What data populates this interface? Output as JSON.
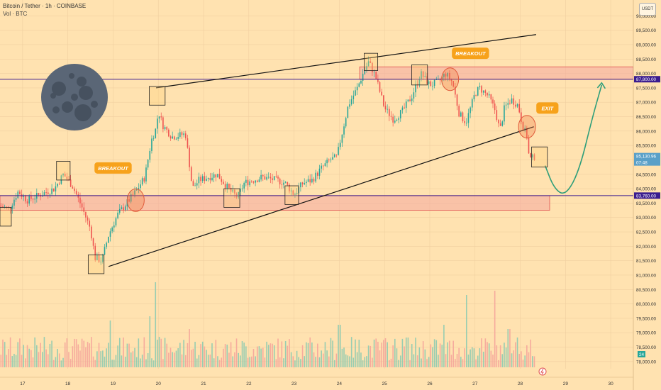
{
  "header": {
    "symbol": "Bitcoin / Tether · 1h · COINBASE",
    "volume_label": "Vol · BTC",
    "currency_button": "USDT"
  },
  "colors": {
    "background": "#ffe2b0",
    "up": "#26a69a",
    "down": "#ef5350",
    "zone_fill": "#f4a8a0",
    "zone_border": "#e05050",
    "level_line": "#3b1d8f",
    "arrow": "#2e9e7a",
    "callout": "#f7a21b",
    "moon": "#5a6676"
  },
  "annotations": {
    "breakout_left": "BREAKOUT",
    "breakout_right": "BREAKOUT",
    "exit": "EXIT",
    "price_current": "85,130.96",
    "price_countdown": "07:48",
    "price_resistance": "87,800.00",
    "price_support": "83,760.00",
    "volume_badge": "24"
  },
  "chart_data": {
    "type": "candlestick",
    "symbol": "Bitcoin / Tether",
    "interval": "1h",
    "exchange": "COINBASE",
    "y_axis": {
      "min": 77750,
      "max": 90550,
      "ticks": [
        "90,000.00",
        "89,500.00",
        "89,000.00",
        "88,500.00",
        "88,000.00",
        "87,500.00",
        "87,000.00",
        "86,500.00",
        "86,000.00",
        "85,500.00",
        "85,000.00",
        "84,500.00",
        "84,000.00",
        "83,500.00",
        "83,000.00",
        "82,500.00",
        "82,000.00",
        "81,500.00",
        "81,000.00",
        "80,500.00",
        "80,000.00",
        "79,500.00",
        "79,000.00",
        "78,500.00",
        "78,000.00"
      ],
      "tick_values": [
        90000,
        89500,
        89000,
        88500,
        88000,
        87500,
        87000,
        86500,
        86000,
        85500,
        85000,
        84500,
        84000,
        83500,
        83000,
        82500,
        82000,
        81500,
        81000,
        80500,
        80000,
        79500,
        79000,
        78500,
        78000
      ]
    },
    "x_axis": {
      "min": 16.5,
      "max": 30.5,
      "ticks": [
        "17",
        "18",
        "19",
        "20",
        "21",
        "22",
        "23",
        "24",
        "25",
        "26",
        "27",
        "28",
        "29",
        "30"
      ],
      "tick_values": [
        17,
        18,
        19,
        20,
        21,
        22,
        23,
        24,
        25,
        26,
        27,
        28,
        29,
        30
      ]
    },
    "price_path": [
      [
        16.5,
        83400
      ],
      [
        16.7,
        83300
      ],
      [
        16.9,
        83900
      ],
      [
        17.1,
        83600
      ],
      [
        17.4,
        83800
      ],
      [
        17.7,
        84000
      ],
      [
        17.9,
        84500
      ],
      [
        18.1,
        84100
      ],
      [
        18.3,
        83400
      ],
      [
        18.5,
        82600
      ],
      [
        18.6,
        81600
      ],
      [
        18.75,
        81500
      ],
      [
        18.9,
        82400
      ],
      [
        19.1,
        83100
      ],
      [
        19.3,
        83500
      ],
      [
        19.5,
        83900
      ],
      [
        19.7,
        84400
      ],
      [
        19.85,
        85700
      ],
      [
        19.95,
        86100
      ],
      [
        20.0,
        86700
      ],
      [
        20.1,
        86200
      ],
      [
        20.3,
        85800
      ],
      [
        20.6,
        85900
      ],
      [
        20.7,
        84700
      ],
      [
        20.75,
        84000
      ],
      [
        20.9,
        84300
      ],
      [
        21.1,
        84400
      ],
      [
        21.3,
        84500
      ],
      [
        21.5,
        84100
      ],
      [
        21.6,
        83900
      ],
      [
        21.75,
        83700
      ],
      [
        21.9,
        84200
      ],
      [
        22.1,
        84300
      ],
      [
        22.3,
        84400
      ],
      [
        22.6,
        84300
      ],
      [
        22.8,
        84200
      ],
      [
        23.0,
        83800
      ],
      [
        23.2,
        84200
      ],
      [
        23.4,
        84300
      ],
      [
        23.6,
        84700
      ],
      [
        23.8,
        85000
      ],
      [
        23.95,
        85100
      ],
      [
        24.0,
        85500
      ],
      [
        24.1,
        86200
      ],
      [
        24.2,
        86900
      ],
      [
        24.4,
        87500
      ],
      [
        24.55,
        88100
      ],
      [
        24.65,
        88400
      ],
      [
        24.8,
        87900
      ],
      [
        25.0,
        86800
      ],
      [
        25.2,
        86400
      ],
      [
        25.4,
        86700
      ],
      [
        25.6,
        87200
      ],
      [
        25.8,
        88000
      ],
      [
        26.0,
        87600
      ],
      [
        26.2,
        87700
      ],
      [
        26.35,
        88000
      ],
      [
        26.5,
        87700
      ],
      [
        26.65,
        86600
      ],
      [
        26.8,
        86300
      ],
      [
        27.0,
        87300
      ],
      [
        27.1,
        87500
      ],
      [
        27.3,
        87200
      ],
      [
        27.45,
        86700
      ],
      [
        27.55,
        86000
      ],
      [
        27.65,
        86800
      ],
      [
        27.8,
        87100
      ],
      [
        27.95,
        86900
      ],
      [
        28.05,
        86200
      ],
      [
        28.15,
        85800
      ],
      [
        28.2,
        85000
      ],
      [
        28.3,
        85100
      ],
      [
        28.35,
        85131
      ]
    ],
    "volume": {
      "max_label": "24",
      "spikes": [
        [
          18.95,
          0.55
        ],
        [
          19.8,
          0.6
        ],
        [
          19.95,
          1.0
        ],
        [
          20.7,
          0.45
        ],
        [
          24.0,
          0.5
        ],
        [
          25.5,
          0.35
        ],
        [
          26.3,
          0.5
        ],
        [
          26.8,
          0.85
        ],
        [
          27.45,
          0.9
        ],
        [
          27.75,
          0.45
        ],
        [
          27.95,
          0.35
        ]
      ]
    },
    "horizontal_levels": [
      {
        "price": 87800,
        "label": "87,800.00"
      },
      {
        "price": 83760,
        "label": "83,760.00"
      }
    ],
    "zones": [
      {
        "from_x": 24.45,
        "to_x": 30.5,
        "low": 87800,
        "high": 88230
      },
      {
        "from_x": 16.5,
        "to_x": 28.65,
        "low": 83250,
        "high": 83760
      }
    ],
    "trendlines": [
      {
        "x1": 19.95,
        "y1": 87500,
        "x2": 28.35,
        "y2": 89350
      },
      {
        "x1": 18.9,
        "y1": 81300,
        "x2": 28.3,
        "y2": 86150
      }
    ],
    "projection": {
      "points": [
        [
          28.55,
          84800
        ],
        [
          28.75,
          84000
        ],
        [
          29.0,
          83750
        ],
        [
          29.3,
          84600
        ],
        [
          29.6,
          86500
        ],
        [
          29.8,
          87600
        ]
      ]
    },
    "current_price": {
      "price": 85131,
      "label": "85,130.96",
      "countdown": "07:48"
    },
    "callouts": [
      {
        "text": "BREAKOUT",
        "x": 19.0,
        "y": 84720
      },
      {
        "text": "BREAKOUT",
        "x": 26.9,
        "y": 88700
      },
      {
        "text": "EXIT",
        "x": 28.6,
        "y": 86800
      }
    ],
    "highlight_boxes": [
      [
        16.5,
        82700,
        16.75,
        83350
      ],
      [
        17.75,
        84300,
        18.05,
        84950
      ],
      [
        18.45,
        81050,
        18.8,
        81700
      ],
      [
        19.8,
        86900,
        20.15,
        87550
      ],
      [
        21.45,
        83350,
        21.8,
        84000
      ],
      [
        22.8,
        83450,
        23.1,
        84100
      ],
      [
        24.55,
        88100,
        24.85,
        88700
      ],
      [
        25.6,
        87600,
        25.95,
        88300
      ],
      [
        28.25,
        84750,
        28.6,
        85450
      ]
    ],
    "circles": [
      [
        19.5,
        83600
      ],
      [
        26.45,
        87800
      ],
      [
        28.15,
        86150
      ]
    ]
  }
}
